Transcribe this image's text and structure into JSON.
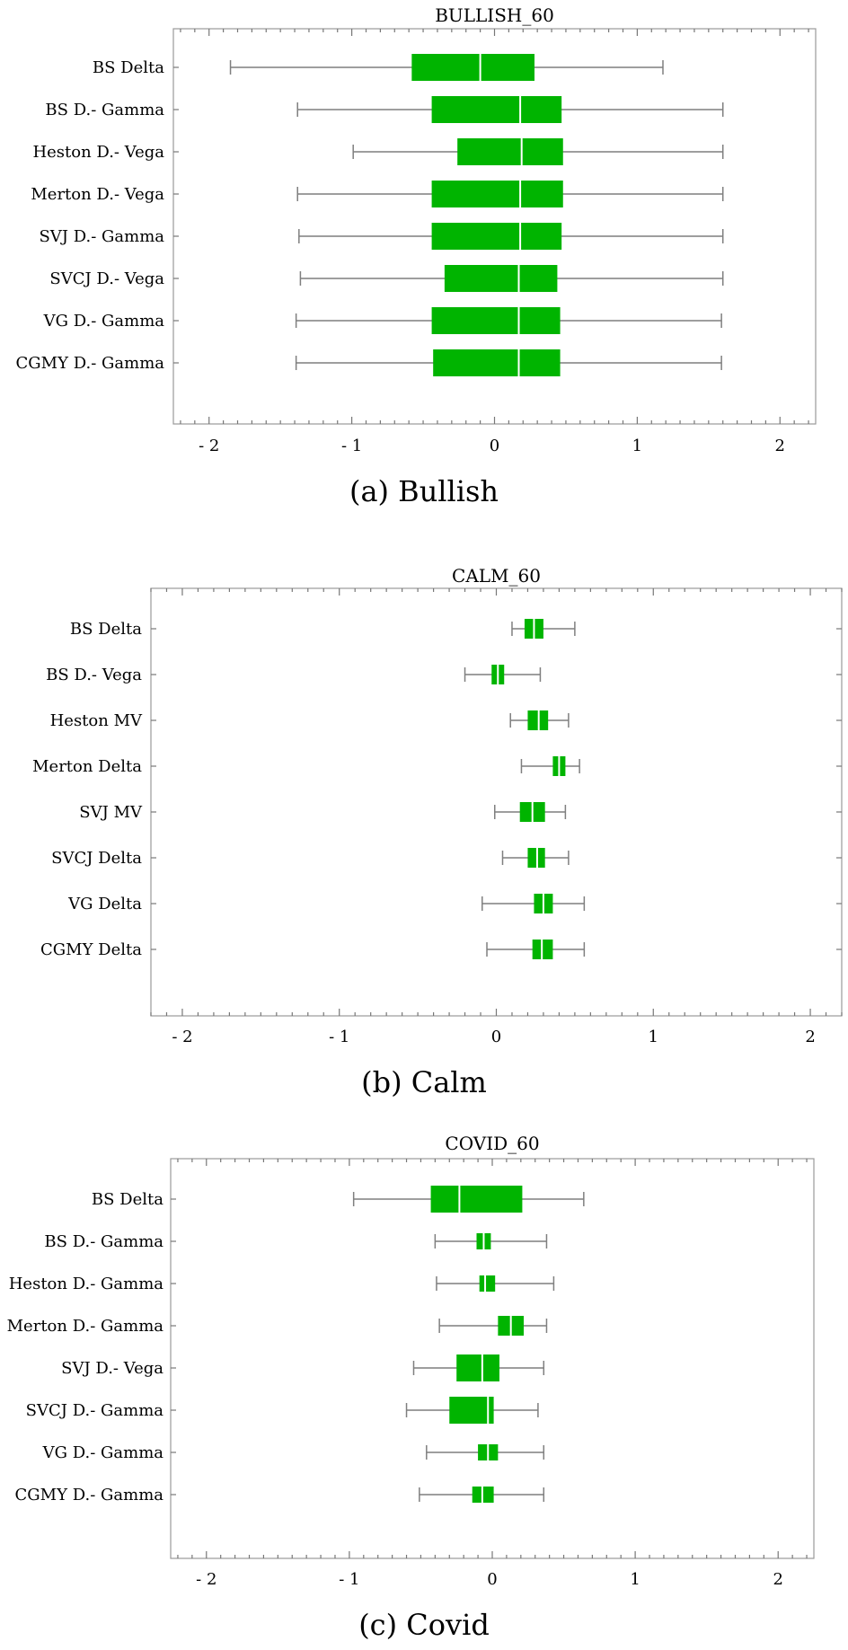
{
  "chart_data": [
    {
      "type": "boxplot",
      "title": "BULLISH_60",
      "caption": "(a) Bullish",
      "xlim": [
        -2.25,
        2.25
      ],
      "xticks": [
        "- 2",
        "- 1",
        "0",
        "1",
        "2"
      ],
      "xtick_values": [
        -2,
        -1,
        0,
        1,
        2
      ],
      "box_color": "#00b400",
      "categories": [
        "BS Delta",
        "BS D.- Gamma",
        "Heston D.- Vega",
        "Merton D.- Vega",
        "SVJ D.- Gamma",
        "SVCJ D.- Vega",
        "VG D.- Gamma",
        "CGMY D.- Gamma"
      ],
      "boxes": [
        {
          "min": -1.85,
          "q1": -0.58,
          "median": -0.1,
          "q3": 0.28,
          "max": 1.18
        },
        {
          "min": -1.38,
          "q1": -0.44,
          "median": 0.18,
          "q3": 0.47,
          "max": 1.6
        },
        {
          "min": -0.99,
          "q1": -0.26,
          "median": 0.19,
          "q3": 0.48,
          "max": 1.6
        },
        {
          "min": -1.38,
          "q1": -0.44,
          "median": 0.18,
          "q3": 0.48,
          "max": 1.6
        },
        {
          "min": -1.37,
          "q1": -0.44,
          "median": 0.18,
          "q3": 0.47,
          "max": 1.6
        },
        {
          "min": -1.36,
          "q1": -0.35,
          "median": 0.17,
          "q3": 0.44,
          "max": 1.6
        },
        {
          "min": -1.39,
          "q1": -0.44,
          "median": 0.17,
          "q3": 0.46,
          "max": 1.59
        },
        {
          "min": -1.39,
          "q1": -0.43,
          "median": 0.17,
          "q3": 0.46,
          "max": 1.59
        }
      ]
    },
    {
      "type": "boxplot",
      "title": "CALM_60",
      "caption": "(b) Calm",
      "xlim": [
        -2.2,
        2.2
      ],
      "xticks": [
        "- 2",
        "- 1",
        "0",
        "1",
        "2"
      ],
      "xtick_values": [
        -2,
        -1,
        0,
        1,
        2
      ],
      "box_color": "#00b400",
      "categories": [
        "BS Delta",
        "BS D.- Vega",
        "Heston MV",
        "Merton Delta",
        "SVJ MV",
        "SVCJ Delta",
        "VG Delta",
        "CGMY Delta"
      ],
      "boxes": [
        {
          "min": 0.1,
          "q1": 0.18,
          "median": 0.24,
          "q3": 0.3,
          "max": 0.5
        },
        {
          "min": -0.2,
          "q1": -0.03,
          "median": 0.01,
          "q3": 0.05,
          "max": 0.28
        },
        {
          "min": 0.09,
          "q1": 0.2,
          "median": 0.27,
          "q3": 0.33,
          "max": 0.46
        },
        {
          "min": 0.16,
          "q1": 0.36,
          "median": 0.4,
          "q3": 0.44,
          "max": 0.53
        },
        {
          "min": -0.01,
          "q1": 0.15,
          "median": 0.23,
          "q3": 0.31,
          "max": 0.44
        },
        {
          "min": 0.04,
          "q1": 0.2,
          "median": 0.26,
          "q3": 0.31,
          "max": 0.46
        },
        {
          "min": -0.09,
          "q1": 0.24,
          "median": 0.3,
          "q3": 0.36,
          "max": 0.56
        },
        {
          "min": -0.06,
          "q1": 0.23,
          "median": 0.29,
          "q3": 0.36,
          "max": 0.56
        }
      ]
    },
    {
      "type": "boxplot",
      "title": "COVID_60",
      "caption": "(c) Covid",
      "xlim": [
        -2.25,
        2.25
      ],
      "xticks": [
        "- 2",
        "- 1",
        "0",
        "1",
        "2"
      ],
      "xtick_values": [
        -2,
        -1,
        0,
        1,
        2
      ],
      "box_color": "#00b400",
      "categories": [
        "BS Delta",
        "BS D.- Gamma",
        "Heston D.- Gamma",
        "Merton D.- Gamma",
        "SVJ D.- Vega",
        "SVCJ D.- Gamma",
        "VG D.- Gamma",
        "CGMY D.- Gamma"
      ],
      "boxes": [
        {
          "min": -0.97,
          "q1": -0.43,
          "median": -0.23,
          "q3": 0.21,
          "max": 0.64
        },
        {
          "min": -0.4,
          "q1": -0.11,
          "median": -0.06,
          "q3": -0.01,
          "max": 0.38
        },
        {
          "min": -0.39,
          "q1": -0.09,
          "median": -0.05,
          "q3": 0.02,
          "max": 0.43
        },
        {
          "min": -0.37,
          "q1": 0.04,
          "median": 0.13,
          "q3": 0.22,
          "max": 0.38
        },
        {
          "min": -0.55,
          "q1": -0.25,
          "median": -0.07,
          "q3": 0.05,
          "max": 0.36
        },
        {
          "min": -0.6,
          "q1": -0.3,
          "median": -0.03,
          "q3": 0.01,
          "max": 0.32
        },
        {
          "min": -0.46,
          "q1": -0.1,
          "median": -0.03,
          "q3": 0.04,
          "max": 0.36
        },
        {
          "min": -0.51,
          "q1": -0.14,
          "median": -0.07,
          "q3": 0.01,
          "max": 0.36
        }
      ]
    }
  ]
}
